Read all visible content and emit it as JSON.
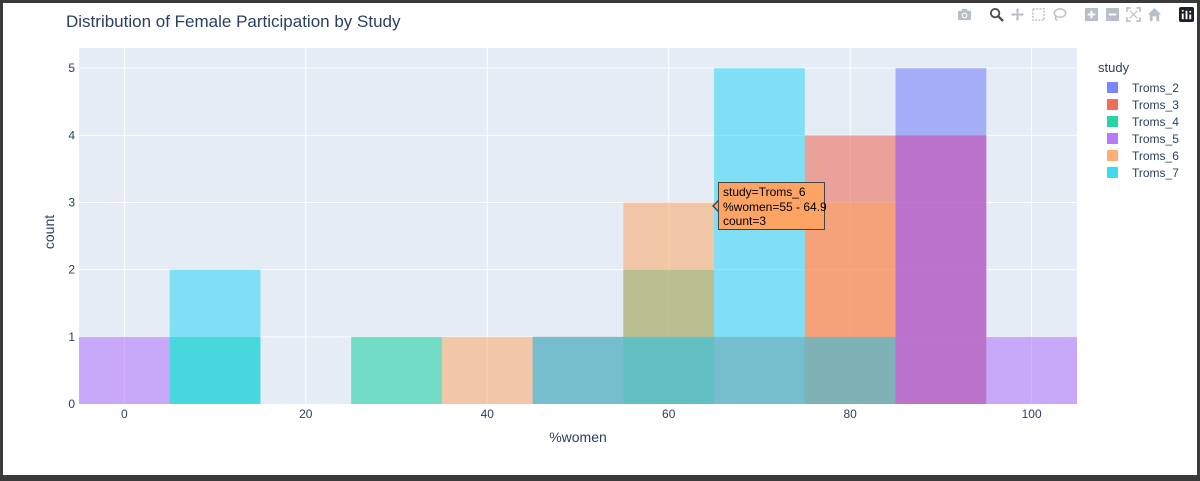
{
  "title": "Distribution of Female Participation by Study",
  "modebar": {
    "buttons": [
      {
        "name": "camera-icon"
      },
      {
        "name": "zoom-icon"
      },
      {
        "name": "pan-icon"
      },
      {
        "name": "box-select-icon"
      },
      {
        "name": "lasso-icon"
      },
      {
        "name": "zoom-in-icon"
      },
      {
        "name": "zoom-out-icon"
      },
      {
        "name": "autoscale-icon"
      },
      {
        "name": "reset-axes-icon"
      },
      {
        "name": "plotly-logo-icon"
      }
    ]
  },
  "legend": {
    "title": "study",
    "placement": "right"
  },
  "tooltip": {
    "line1": "study=Troms_6",
    "line2": "%women=55 - 64.9",
    "line3": "count=3"
  },
  "chart_data": {
    "type": "bar",
    "barmode": "overlay",
    "title": "Distribution of Female Participation by Study",
    "xlabel": "%women",
    "ylabel": "count",
    "xlim": [
      -5,
      105
    ],
    "ylim": [
      0,
      5.3
    ],
    "xticks": [
      0,
      20,
      40,
      60,
      80,
      100
    ],
    "yticks": [
      0,
      1,
      2,
      3,
      4,
      5
    ],
    "grid": true,
    "bin_width": 10,
    "bin_starts": [
      -5,
      5,
      15,
      25,
      35,
      45,
      55,
      65,
      75,
      85,
      95
    ],
    "series": [
      {
        "name": "Troms_2",
        "color": "#636efa",
        "values": [
          0,
          0,
          0,
          0,
          0,
          1,
          1,
          1,
          1,
          5,
          0
        ]
      },
      {
        "name": "Troms_3",
        "color": "#ef553b",
        "values": [
          0,
          0,
          0,
          0,
          0,
          0,
          0,
          0,
          4,
          4,
          0
        ]
      },
      {
        "name": "Troms_4",
        "color": "#00cc96",
        "values": [
          0,
          1,
          0,
          1,
          0,
          0,
          2,
          0,
          0,
          0,
          0
        ]
      },
      {
        "name": "Troms_5",
        "color": "#ab63fa",
        "values": [
          1,
          0,
          0,
          0,
          0,
          0,
          0,
          0,
          0,
          4,
          1
        ]
      },
      {
        "name": "Troms_6",
        "color": "#ffa15a",
        "values": [
          0,
          0,
          0,
          0,
          1,
          1,
          3,
          1,
          3,
          0,
          0
        ]
      },
      {
        "name": "Troms_7",
        "color": "#19d3f3",
        "values": [
          0,
          2,
          0,
          0,
          0,
          1,
          1,
          5,
          1,
          0,
          0
        ]
      }
    ]
  }
}
